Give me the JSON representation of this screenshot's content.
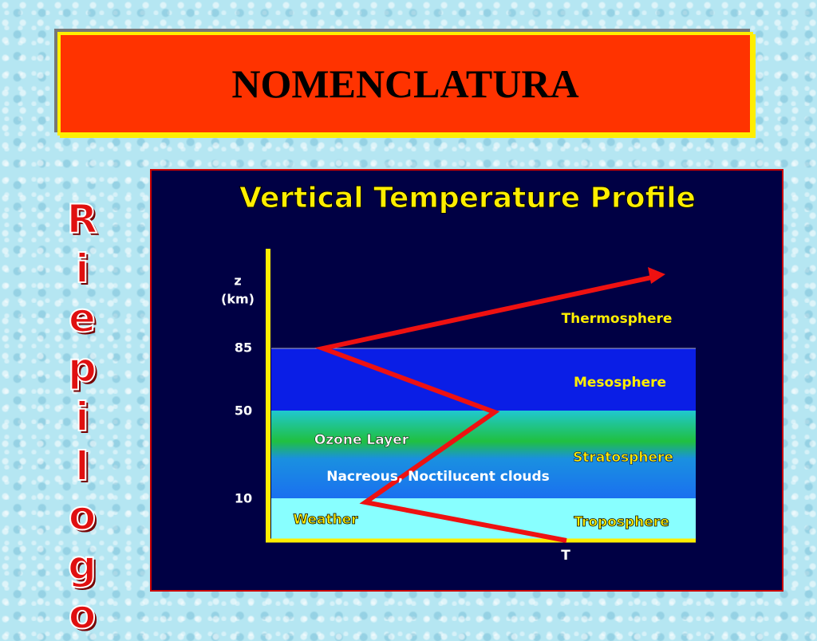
{
  "header": {
    "title": "NOMENCLATURA"
  },
  "sidebar": {
    "text": "Riepilogo"
  },
  "diagram": {
    "title": "Vertical Temperature Profile",
    "axis_label": {
      "symbol": "z",
      "unit": "(km)"
    },
    "ticks": [
      "85",
      "50",
      "10"
    ],
    "layers": [
      "Thermosphere",
      "Mesosphere",
      "Stratosphere",
      "Troposphere"
    ],
    "annotations": [
      "Ozone Layer",
      "Nacreous, Noctilucent clouds",
      "Weather"
    ],
    "x_label": "T"
  }
}
